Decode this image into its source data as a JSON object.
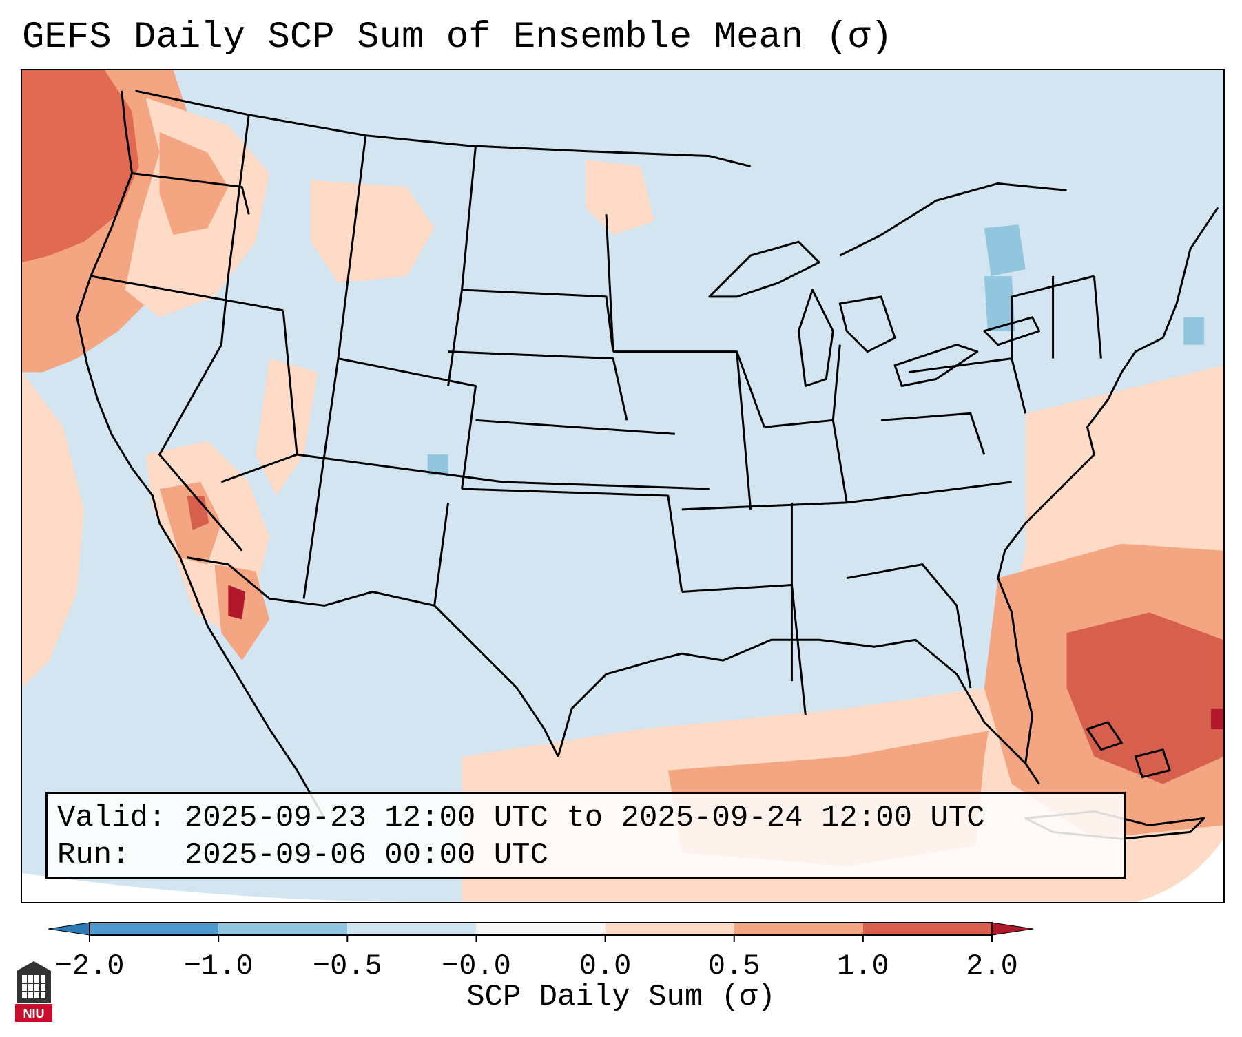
{
  "title": "GEFS Daily SCP Sum of Ensemble Mean (σ)",
  "valid_line": "Valid: 2025-09-23 12:00 UTC to 2025-09-24 12:00 UTC",
  "run_line": "Run:   2025-09-06 00:00 UTC",
  "colorbar": {
    "label": "SCP Daily Sum (σ)",
    "ticks": [
      "−2.0",
      "−1.0",
      "−0.5",
      "−0.0",
      "0.0",
      "0.5",
      "1.0",
      "2.0"
    ],
    "colors": [
      "#2c7bb6",
      "#4f9acf",
      "#92c5de",
      "#d1e5f0",
      "#fddbc7",
      "#f4a582",
      "#d6604d",
      "#b2182b"
    ]
  },
  "logo": {
    "text": "NIU",
    "icon": "university-logo-icon"
  },
  "map": {
    "region": "Contiguous United States",
    "background_color": "#d2e5f1",
    "features": [
      "state-boundaries",
      "coastlines",
      "country-borders"
    ]
  }
}
